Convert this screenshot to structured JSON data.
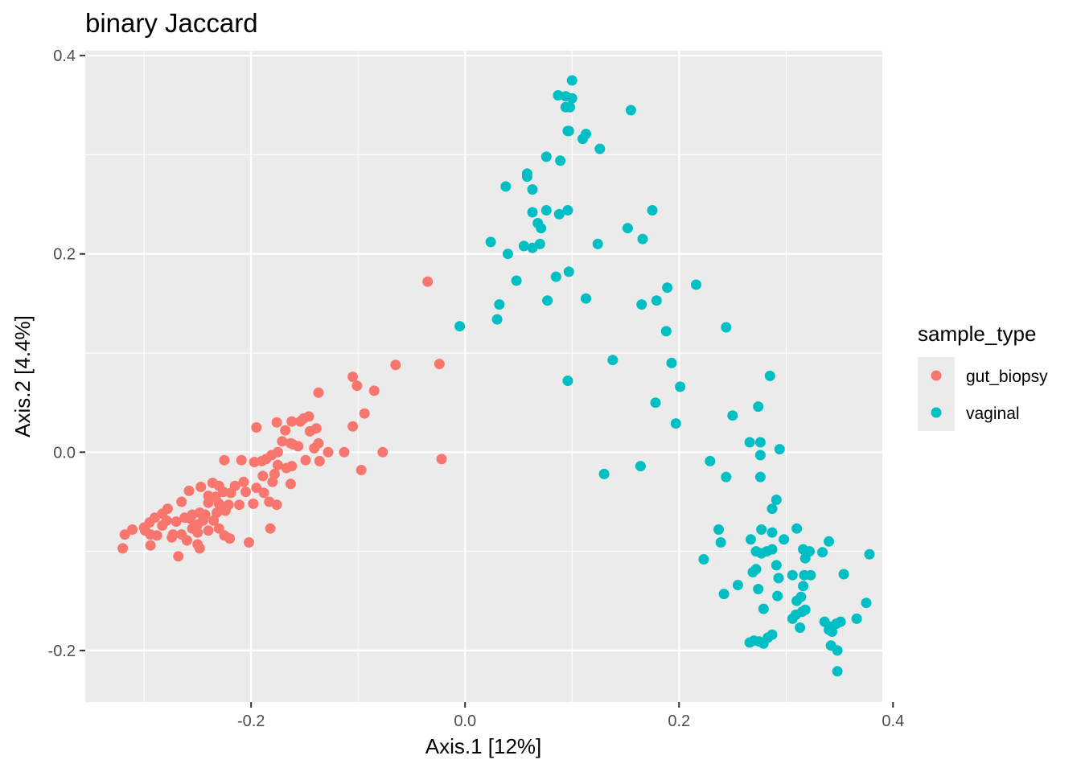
{
  "chart_data": {
    "type": "scatter",
    "title": "binary Jaccard",
    "xlabel": "Axis.1   [12%]",
    "ylabel": "Axis.2   [4.4%]",
    "xlim": [
      -0.355,
      0.39
    ],
    "ylim": [
      -0.252,
      0.405
    ],
    "x_ticks": [
      -0.2,
      0.0,
      0.2,
      0.4
    ],
    "x_tick_labels": [
      "-0.2",
      "0.0",
      "0.2",
      "0.4"
    ],
    "y_ticks": [
      -0.2,
      0.0,
      0.2,
      0.4
    ],
    "y_tick_labels": [
      "-0.2",
      "0.0",
      "0.2",
      "0.4"
    ],
    "grid": true,
    "legend": {
      "title": "sample_type",
      "placement": "right",
      "entries": [
        "gut_biopsy",
        "vaginal"
      ]
    },
    "colors": {
      "gut_biopsy": "#F8766D",
      "vaginal": "#00BFC4"
    },
    "series": [
      {
        "name": "gut_biopsy",
        "color": "#F8766D",
        "points": [
          [
            -0.035,
            0.172
          ],
          [
            -0.024,
            0.089
          ],
          [
            -0.065,
            0.088
          ],
          [
            -0.105,
            0.076
          ],
          [
            -0.101,
            0.067
          ],
          [
            -0.085,
            0.062
          ],
          [
            -0.137,
            0.06
          ],
          [
            -0.094,
            0.039
          ],
          [
            -0.105,
            0.026
          ],
          [
            -0.151,
            0.034
          ],
          [
            -0.146,
            0.036
          ],
          [
            -0.154,
            0.031
          ],
          [
            -0.162,
            0.031
          ],
          [
            -0.176,
            0.03
          ],
          [
            -0.195,
            0.025
          ],
          [
            -0.168,
            0.022
          ],
          [
            -0.145,
            0.021
          ],
          [
            -0.139,
            0.024
          ],
          [
            -0.161,
            0.008
          ],
          [
            -0.171,
            0.011
          ],
          [
            -0.163,
            0.009
          ],
          [
            -0.137,
            0.009
          ],
          [
            -0.156,
            0.006
          ],
          [
            -0.141,
            0.004
          ],
          [
            -0.128,
            0
          ],
          [
            -0.113,
            0
          ],
          [
            -0.077,
            0
          ],
          [
            -0.022,
            -0.007
          ],
          [
            -0.097,
            -0.018
          ],
          [
            -0.136,
            -0.009
          ],
          [
            -0.149,
            -0.008
          ],
          [
            -0.162,
            -0.014
          ],
          [
            -0.175,
            0
          ],
          [
            -0.181,
            -0.003
          ],
          [
            -0.186,
            -0.007
          ],
          [
            -0.19,
            -0.009
          ],
          [
            -0.197,
            -0.01
          ],
          [
            -0.209,
            -0.008
          ],
          [
            -0.225,
            -0.008
          ],
          [
            -0.175,
            -0.013
          ],
          [
            -0.167,
            -0.016
          ],
          [
            -0.178,
            -0.022
          ],
          [
            -0.189,
            -0.024
          ],
          [
            -0.18,
            -0.03
          ],
          [
            -0.163,
            -0.032
          ],
          [
            -0.207,
            -0.03
          ],
          [
            -0.215,
            -0.034
          ],
          [
            -0.23,
            -0.034
          ],
          [
            -0.236,
            -0.031
          ],
          [
            -0.247,
            -0.035
          ],
          [
            -0.195,
            -0.036
          ],
          [
            -0.205,
            -0.04
          ],
          [
            -0.188,
            -0.041
          ],
          [
            -0.183,
            -0.05
          ],
          [
            -0.176,
            -0.053
          ],
          [
            -0.198,
            -0.052
          ],
          [
            -0.219,
            -0.041
          ],
          [
            -0.226,
            -0.04
          ],
          [
            -0.233,
            -0.045
          ],
          [
            -0.24,
            -0.044
          ],
          [
            -0.258,
            -0.039
          ],
          [
            -0.265,
            -0.05
          ],
          [
            -0.24,
            -0.051
          ],
          [
            -0.23,
            -0.052
          ],
          [
            -0.221,
            -0.053
          ],
          [
            -0.211,
            -0.053
          ],
          [
            -0.224,
            -0.059
          ],
          [
            -0.232,
            -0.061
          ],
          [
            -0.243,
            -0.063
          ],
          [
            -0.248,
            -0.061
          ],
          [
            -0.255,
            -0.063
          ],
          [
            -0.257,
            -0.067
          ],
          [
            -0.262,
            -0.066
          ],
          [
            -0.278,
            -0.057
          ],
          [
            -0.283,
            -0.062
          ],
          [
            -0.29,
            -0.066
          ],
          [
            -0.279,
            -0.069
          ],
          [
            -0.27,
            -0.07
          ],
          [
            -0.283,
            -0.074
          ],
          [
            -0.295,
            -0.071
          ],
          [
            -0.3,
            -0.076
          ],
          [
            -0.311,
            -0.078
          ],
          [
            -0.299,
            -0.079
          ],
          [
            -0.294,
            -0.083
          ],
          [
            -0.273,
            -0.083
          ],
          [
            -0.288,
            -0.084
          ],
          [
            -0.274,
            -0.086
          ],
          [
            -0.245,
            -0.069
          ],
          [
            -0.25,
            -0.073
          ],
          [
            -0.255,
            -0.077
          ],
          [
            -0.25,
            -0.081
          ],
          [
            -0.24,
            -0.079
          ],
          [
            -0.235,
            -0.069
          ],
          [
            -0.23,
            -0.077
          ],
          [
            -0.225,
            -0.084
          ],
          [
            -0.22,
            -0.087
          ],
          [
            -0.265,
            -0.083
          ],
          [
            -0.26,
            -0.089
          ],
          [
            -0.25,
            -0.093
          ],
          [
            -0.248,
            -0.097
          ],
          [
            -0.202,
            -0.091
          ],
          [
            -0.182,
            -0.077
          ],
          [
            -0.268,
            -0.105
          ],
          [
            -0.294,
            -0.094
          ],
          [
            -0.318,
            -0.083
          ],
          [
            -0.32,
            -0.097
          ]
        ]
      },
      {
        "name": "vaginal",
        "color": "#00BFC4",
        "points": [
          [
            0.1,
            0.375
          ],
          [
            0.087,
            0.36
          ],
          [
            0.094,
            0.359
          ],
          [
            0.1,
            0.357
          ],
          [
            0.094,
            0.348
          ],
          [
            0.098,
            0.348
          ],
          [
            0.155,
            0.345
          ],
          [
            0.097,
            0.324
          ],
          [
            0.096,
            0.324
          ],
          [
            0.113,
            0.321
          ],
          [
            0.11,
            0.316
          ],
          [
            0.126,
            0.306
          ],
          [
            0.076,
            0.298
          ],
          [
            0.089,
            0.294
          ],
          [
            0.058,
            0.281
          ],
          [
            0.058,
            0.278
          ],
          [
            0.038,
            0.268
          ],
          [
            0.063,
            0.265
          ],
          [
            0.063,
            0.242
          ],
          [
            0.076,
            0.244
          ],
          [
            0.096,
            0.244
          ],
          [
            0.088,
            0.24
          ],
          [
            0.068,
            0.231
          ],
          [
            0.071,
            0.226
          ],
          [
            0.175,
            0.244
          ],
          [
            0.152,
            0.226
          ],
          [
            0.166,
            0.215
          ],
          [
            0.024,
            0.212
          ],
          [
            0.124,
            0.21
          ],
          [
            0.07,
            0.21
          ],
          [
            0.055,
            0.208
          ],
          [
            0.063,
            0.206
          ],
          [
            0.04,
            0.2
          ],
          [
            0.097,
            0.182
          ],
          [
            0.085,
            0.177
          ],
          [
            0.048,
            0.173
          ],
          [
            0.216,
            0.169
          ],
          [
            0.189,
            0.166
          ],
          [
            0.113,
            0.155
          ],
          [
            0.179,
            0.153
          ],
          [
            0.077,
            0.153
          ],
          [
            0.032,
            0.149
          ],
          [
            0.165,
            0.149
          ],
          [
            0.03,
            0.134
          ],
          [
            -0.005,
            0.127
          ],
          [
            0.188,
            0.122
          ],
          [
            0.244,
            0.126
          ],
          [
            0.138,
            0.093
          ],
          [
            0.193,
            0.09
          ],
          [
            0.096,
            0.072
          ],
          [
            0.285,
            0.077
          ],
          [
            0.201,
            0.066
          ],
          [
            0.178,
            0.05
          ],
          [
            0.274,
            0.046
          ],
          [
            0.25,
            0.037
          ],
          [
            0.197,
            0.029
          ],
          [
            0.266,
            0.01
          ],
          [
            0.276,
            0.01
          ],
          [
            0.294,
            0.003
          ],
          [
            0.276,
            -0.003
          ],
          [
            0.229,
            -0.009
          ],
          [
            0.164,
            -0.014
          ],
          [
            0.13,
            -0.022
          ],
          [
            0.244,
            -0.025
          ],
          [
            0.276,
            -0.025
          ],
          [
            0.291,
            -0.048
          ],
          [
            0.287,
            -0.057
          ],
          [
            0.277,
            -0.078
          ],
          [
            0.237,
            -0.078
          ],
          [
            0.31,
            -0.077
          ],
          [
            0.267,
            -0.088
          ],
          [
            0.287,
            -0.081
          ],
          [
            0.298,
            -0.088
          ],
          [
            0.34,
            -0.09
          ],
          [
            0.239,
            -0.091
          ],
          [
            0.282,
            -0.1
          ],
          [
            0.287,
            -0.098
          ],
          [
            0.277,
            -0.102
          ],
          [
            0.272,
            -0.1
          ],
          [
            0.316,
            -0.098
          ],
          [
            0.322,
            -0.1
          ],
          [
            0.334,
            -0.101
          ],
          [
            0.318,
            -0.107
          ],
          [
            0.378,
            -0.103
          ],
          [
            0.223,
            -0.108
          ],
          [
            0.272,
            -0.118
          ],
          [
            0.291,
            -0.114
          ],
          [
            0.269,
            -0.121
          ],
          [
            0.306,
            -0.124
          ],
          [
            0.317,
            -0.124
          ],
          [
            0.323,
            -0.124
          ],
          [
            0.354,
            -0.123
          ],
          [
            0.293,
            -0.127
          ],
          [
            0.255,
            -0.134
          ],
          [
            0.274,
            -0.138
          ],
          [
            0.316,
            -0.135
          ],
          [
            0.242,
            -0.143
          ],
          [
            0.292,
            -0.145
          ],
          [
            0.314,
            -0.146
          ],
          [
            0.31,
            -0.15
          ],
          [
            0.375,
            -0.152
          ],
          [
            0.279,
            -0.158
          ],
          [
            0.318,
            -0.159
          ],
          [
            0.315,
            -0.161
          ],
          [
            0.309,
            -0.164
          ],
          [
            0.306,
            -0.168
          ],
          [
            0.366,
            -0.168
          ],
          [
            0.336,
            -0.171
          ],
          [
            0.347,
            -0.173
          ],
          [
            0.341,
            -0.176
          ],
          [
            0.351,
            -0.171
          ],
          [
            0.313,
            -0.177
          ],
          [
            0.34,
            -0.179
          ],
          [
            0.343,
            -0.181
          ],
          [
            0.287,
            -0.184
          ],
          [
            0.283,
            -0.187
          ],
          [
            0.27,
            -0.19
          ],
          [
            0.275,
            -0.191
          ],
          [
            0.279,
            -0.193
          ],
          [
            0.266,
            -0.192
          ],
          [
            0.342,
            -0.195
          ],
          [
            0.348,
            -0.2
          ],
          [
            0.348,
            -0.221
          ]
        ]
      }
    ]
  }
}
